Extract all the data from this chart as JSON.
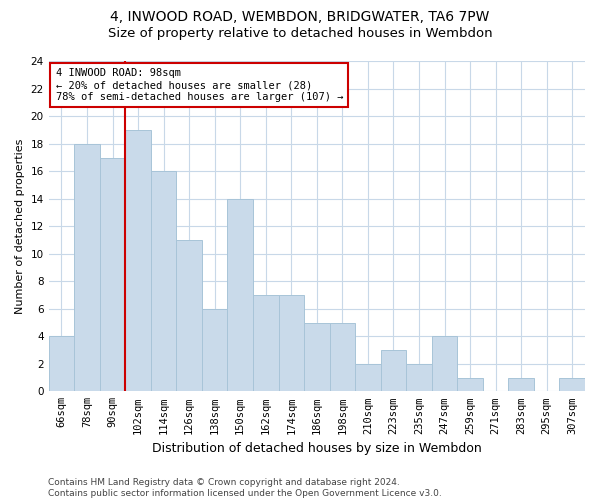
{
  "title1": "4, INWOOD ROAD, WEMBDON, BRIDGWATER, TA6 7PW",
  "title2": "Size of property relative to detached houses in Wembdon",
  "xlabel": "Distribution of detached houses by size in Wembdon",
  "ylabel": "Number of detached properties",
  "categories": [
    "66sqm",
    "78sqm",
    "90sqm",
    "102sqm",
    "114sqm",
    "126sqm",
    "138sqm",
    "150sqm",
    "162sqm",
    "174sqm",
    "186sqm",
    "198sqm",
    "210sqm",
    "223sqm",
    "235sqm",
    "247sqm",
    "259sqm",
    "271sqm",
    "283sqm",
    "295sqm",
    "307sqm"
  ],
  "values": [
    4,
    18,
    17,
    19,
    16,
    11,
    6,
    14,
    7,
    7,
    5,
    5,
    2,
    3,
    2,
    4,
    1,
    0,
    1,
    0,
    1
  ],
  "bar_color": "#c9daea",
  "bar_edge_color": "#a8c4d8",
  "vline_x_idx": 2.5,
  "vline_color": "#cc0000",
  "annotation_text": "4 INWOOD ROAD: 98sqm\n← 20% of detached houses are smaller (28)\n78% of semi-detached houses are larger (107) →",
  "annotation_box_color": "#ffffff",
  "annotation_box_edge_color": "#cc0000",
  "ylim": [
    0,
    24
  ],
  "yticks": [
    0,
    2,
    4,
    6,
    8,
    10,
    12,
    14,
    16,
    18,
    20,
    22,
    24
  ],
  "footer_text": "Contains HM Land Registry data © Crown copyright and database right 2024.\nContains public sector information licensed under the Open Government Licence v3.0.",
  "bg_color": "#ffffff",
  "grid_color": "#c8d8e8",
  "title1_fontsize": 10,
  "title2_fontsize": 9.5,
  "xlabel_fontsize": 9,
  "ylabel_fontsize": 8,
  "tick_fontsize": 7.5,
  "annotation_fontsize": 7.5,
  "footer_fontsize": 6.5
}
